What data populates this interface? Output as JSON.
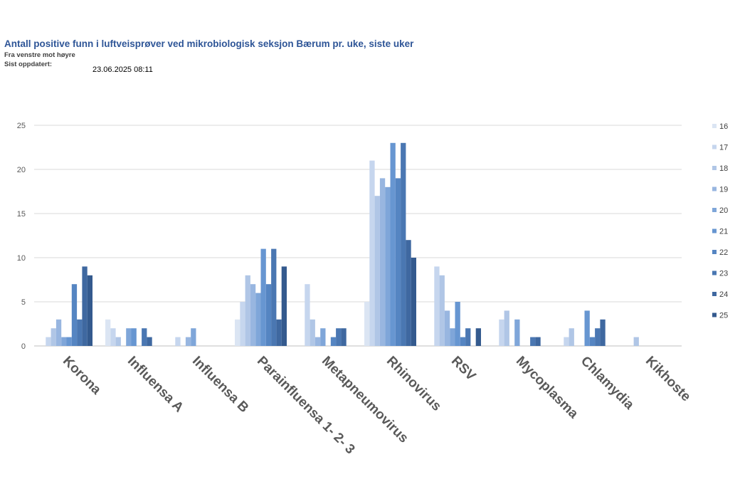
{
  "header": {
    "title": "Antall positive funn i luftveisprøver ved mikrobiologisk seksjon Bærum pr. uke, siste uker",
    "direction_note": "Fra venstre mot høyre",
    "updated_label": "Sist oppdatert:",
    "updated_value": "23.06.2025 08:11"
  },
  "chart_data": {
    "type": "bar",
    "title": "Antall positive funn i luftveisprøver ved mikrobiologisk seksjon Bærum pr. uke, siste uker",
    "xlabel": "",
    "ylabel": "",
    "ylim": [
      0,
      25
    ],
    "yticks": [
      0,
      5,
      10,
      15,
      20,
      25
    ],
    "grid": true,
    "legend_position": "right",
    "categories": [
      "Korona",
      "Influensa A",
      "Influensa B",
      "Parainfluensa 1- 2- 3",
      "Metapneumovirus",
      "Rhinovirus",
      "RSV",
      "Mycoplasma",
      "Chlamydia",
      "Kikhoste"
    ],
    "series": [
      {
        "name": "16",
        "color": "#dbe5f3",
        "values": [
          0,
          3,
          0,
          3,
          0,
          5,
          0,
          0,
          0,
          0
        ]
      },
      {
        "name": "17",
        "color": "#c6d6ee",
        "values": [
          1,
          2,
          1,
          5,
          7,
          21,
          9,
          3,
          1,
          0
        ]
      },
      {
        "name": "18",
        "color": "#b0c6e6",
        "values": [
          2,
          1,
          0,
          8,
          3,
          17,
          8,
          4,
          2,
          1
        ]
      },
      {
        "name": "19",
        "color": "#98b6e0",
        "values": [
          3,
          0,
          1,
          7,
          1,
          19,
          4,
          0,
          0,
          0
        ]
      },
      {
        "name": "20",
        "color": "#7fa6d9",
        "values": [
          1,
          2,
          2,
          6,
          2,
          18,
          2,
          3,
          0,
          0
        ]
      },
      {
        "name": "21",
        "color": "#6796d1",
        "values": [
          1,
          2,
          0,
          11,
          0,
          23,
          5,
          0,
          4,
          0
        ]
      },
      {
        "name": "22",
        "color": "#5585c2",
        "values": [
          7,
          0,
          0,
          7,
          1,
          19,
          1,
          0,
          1,
          0
        ]
      },
      {
        "name": "23",
        "color": "#4a77b2",
        "values": [
          3,
          2,
          0,
          11,
          2,
          23,
          2,
          1,
          2,
          0
        ]
      },
      {
        "name": "24",
        "color": "#3f68a0",
        "values": [
          9,
          1,
          0,
          3,
          2,
          12,
          0,
          1,
          3,
          0
        ]
      },
      {
        "name": "25",
        "color": "#345a8e",
        "values": [
          8,
          0,
          0,
          9,
          0,
          10,
          2,
          0,
          0,
          0
        ]
      }
    ]
  }
}
